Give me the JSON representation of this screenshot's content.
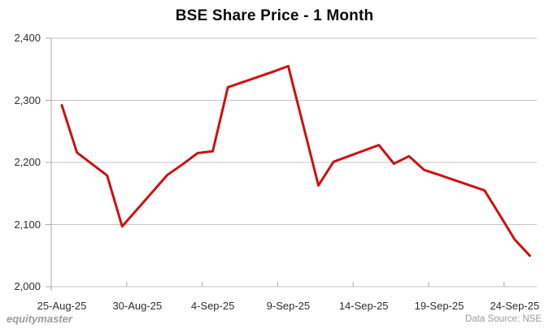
{
  "chart_data": {
    "type": "line",
    "title": "BSE Share Price - 1 Month",
    "xlabel": "",
    "ylabel": "",
    "grid": true,
    "legend": false,
    "line_color": "#cc1111",
    "grid_color": "#c4c4c4",
    "axis_color": "#a8a8a8",
    "ylim": [
      2000,
      2400
    ],
    "y_ticks": [
      2400,
      2300,
      2200,
      2100,
      2000
    ],
    "y_tick_labels": [
      "2,400",
      "2,300",
      "2,200",
      "2,100",
      "2,000"
    ],
    "x_tick_labels": [
      "25-Aug-25",
      "30-Aug-25",
      "4-Sep-25",
      "9-Sep-25",
      "14-Sep-25",
      "19-Sep-25",
      "24-Sep-25"
    ],
    "x_tick_days": [
      0,
      5,
      10,
      15,
      20,
      25,
      30
    ],
    "series": [
      {
        "name": "BSE share price",
        "points": [
          {
            "date": "25-Aug-25",
            "day": 0,
            "value": 2292
          },
          {
            "date": "26-Aug-25",
            "day": 1,
            "value": 2216
          },
          {
            "date": "28-Aug-25",
            "day": 3,
            "value": 2179
          },
          {
            "date": "29-Aug-25",
            "day": 4,
            "value": 2097
          },
          {
            "date": "1-Sep-25",
            "day": 7,
            "value": 2180
          },
          {
            "date": "2-Sep-25",
            "day": 8,
            "value": 2197
          },
          {
            "date": "3-Sep-25",
            "day": 9,
            "value": 2215
          },
          {
            "date": "4-Sep-25",
            "day": 10,
            "value": 2218
          },
          {
            "date": "5-Sep-25",
            "day": 11,
            "value": 2321
          },
          {
            "date": "8-Sep-25",
            "day": 14,
            "value": 2346
          },
          {
            "date": "9-Sep-25",
            "day": 15,
            "value": 2355
          },
          {
            "date": "10-Sep-25",
            "day": 16,
            "value": 2259
          },
          {
            "date": "11-Sep-25",
            "day": 17,
            "value": 2163
          },
          {
            "date": "12-Sep-25",
            "day": 18,
            "value": 2201
          },
          {
            "date": "15-Sep-25",
            "day": 21,
            "value": 2228
          },
          {
            "date": "16-Sep-25",
            "day": 22,
            "value": 2198
          },
          {
            "date": "17-Sep-25",
            "day": 23,
            "value": 2210
          },
          {
            "date": "18-Sep-25",
            "day": 24,
            "value": 2188
          },
          {
            "date": "19-Sep-25",
            "day": 25,
            "value": 2180
          },
          {
            "date": "22-Sep-25",
            "day": 28,
            "value": 2155
          },
          {
            "date": "23-Sep-25",
            "day": 29,
            "value": 2116
          },
          {
            "date": "24-Sep-25",
            "day": 30,
            "value": 2076
          },
          {
            "date": "25-Sep-25",
            "day": 31,
            "value": 2050
          }
        ]
      }
    ]
  },
  "footer": {
    "brand": "equitymaster",
    "source": "Data Source: NSE"
  }
}
